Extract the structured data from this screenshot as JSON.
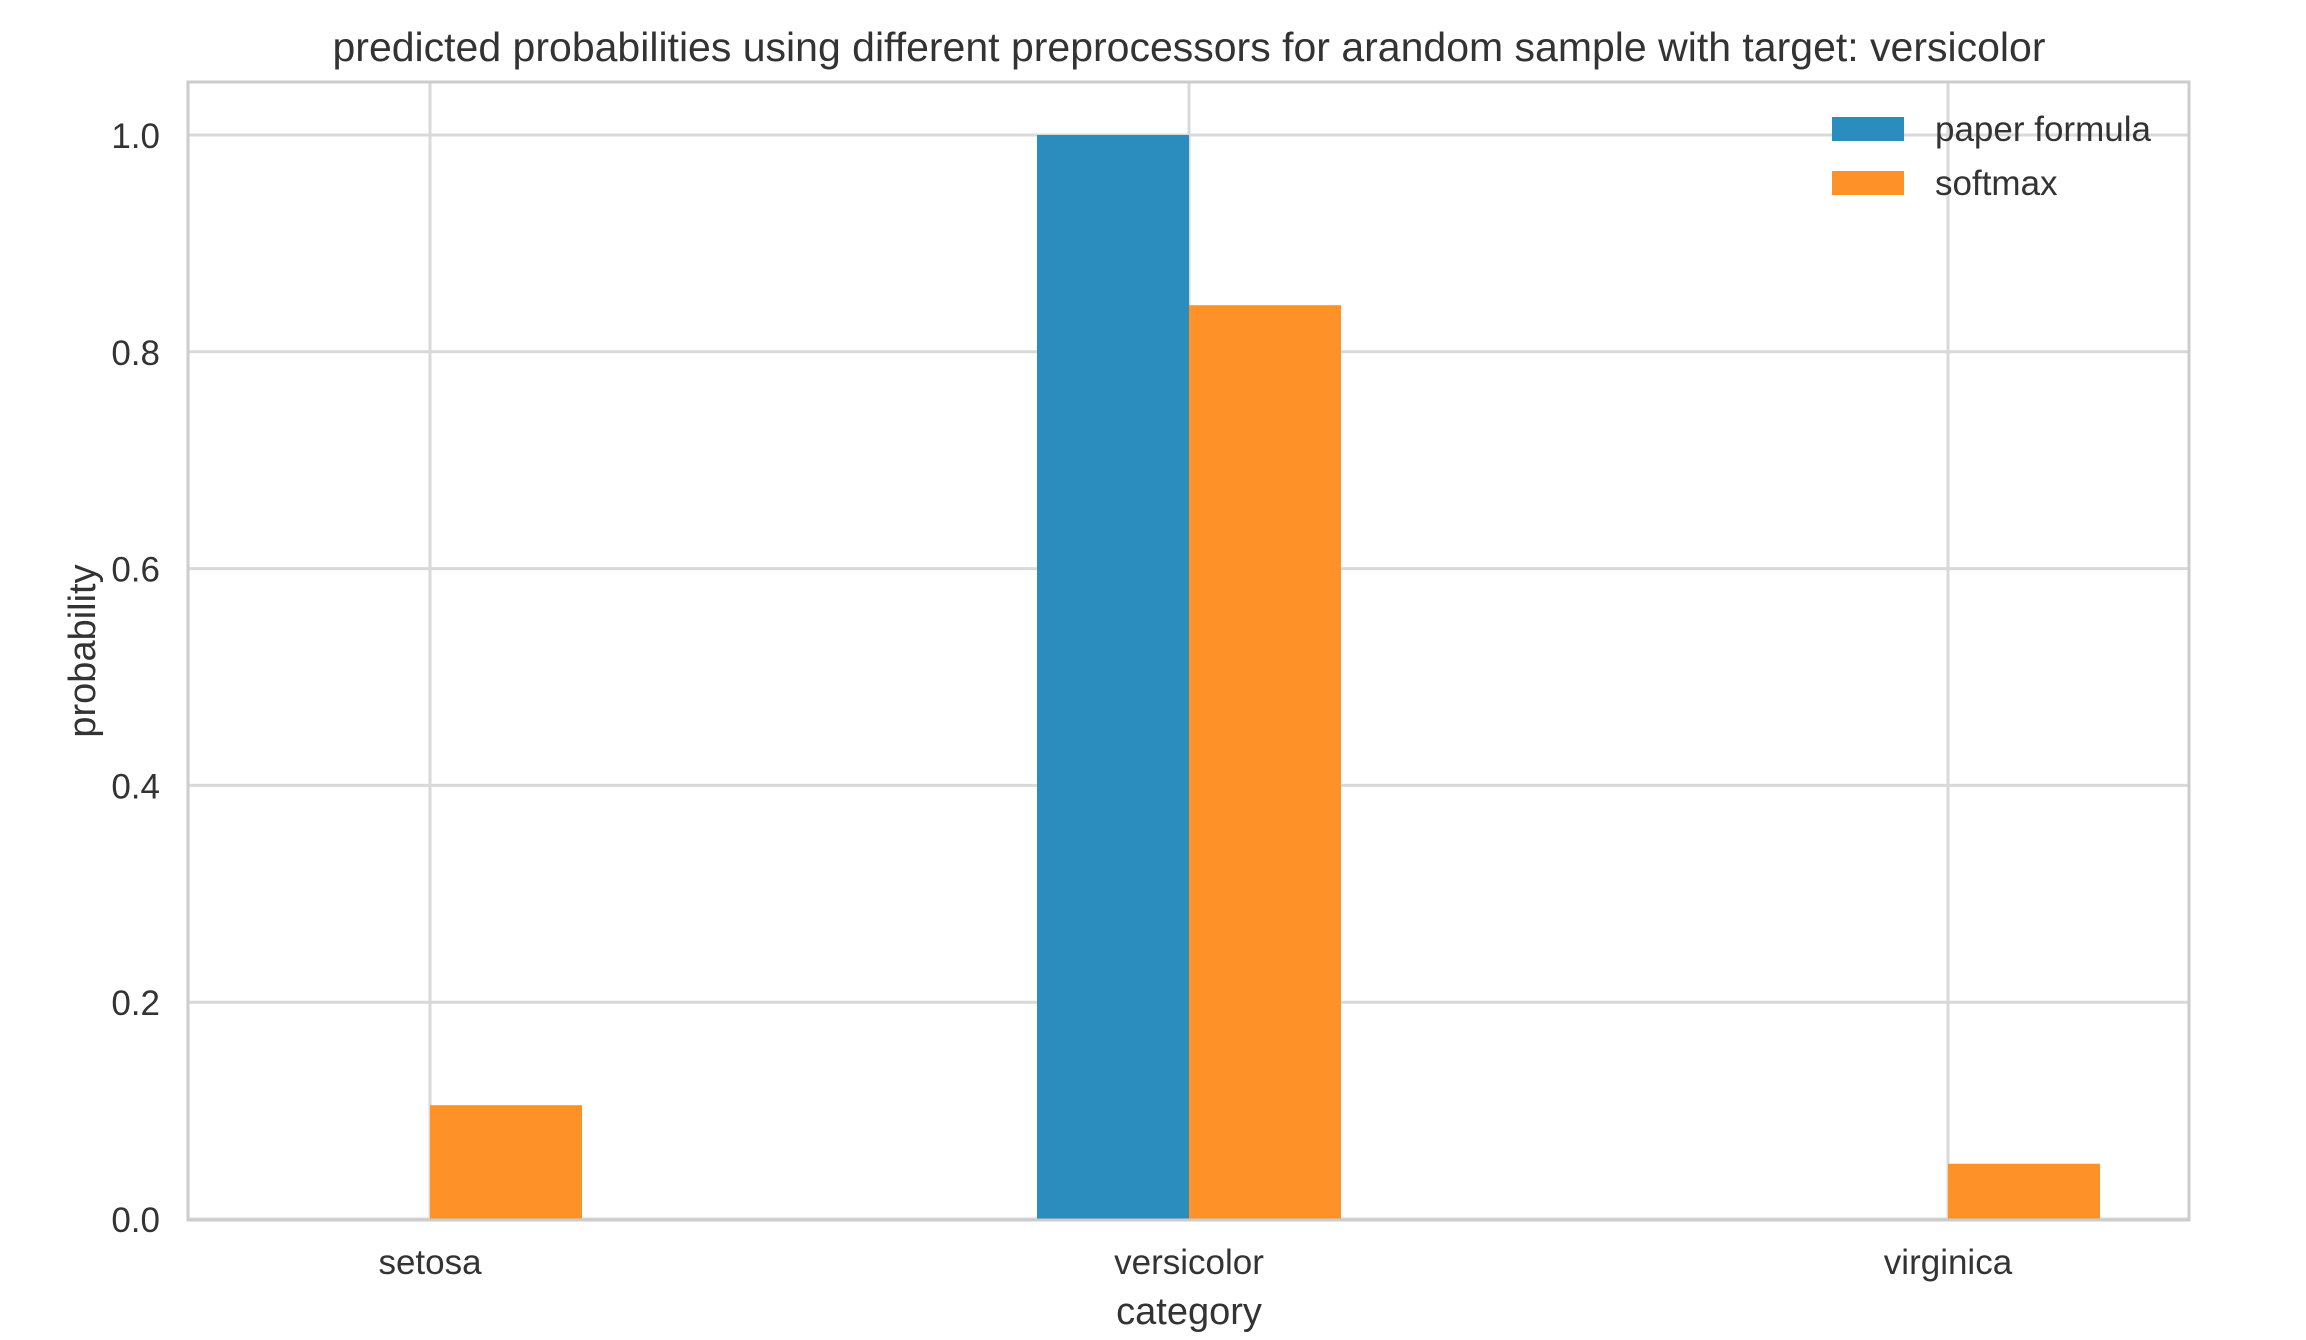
{
  "chart_data": {
    "type": "bar",
    "title": "predicted probabilities using different preprocessors for arandom sample with target: versicolor",
    "xlabel": "category",
    "ylabel": "probability",
    "categories": [
      "setosa",
      "versicolor",
      "virginica"
    ],
    "series": [
      {
        "name": "paper formula",
        "color": "#2b8cbe",
        "values": [
          0.0,
          1.0,
          0.0
        ]
      },
      {
        "name": "softmax",
        "color": "#fe9229",
        "values": [
          0.105,
          0.843,
          0.051
        ]
      }
    ],
    "ylim": [
      0,
      1.05
    ],
    "yticks": [
      "0.0",
      "0.2",
      "0.4",
      "0.6",
      "0.8",
      "1.0"
    ],
    "grid": true,
    "legend": "top-right"
  }
}
